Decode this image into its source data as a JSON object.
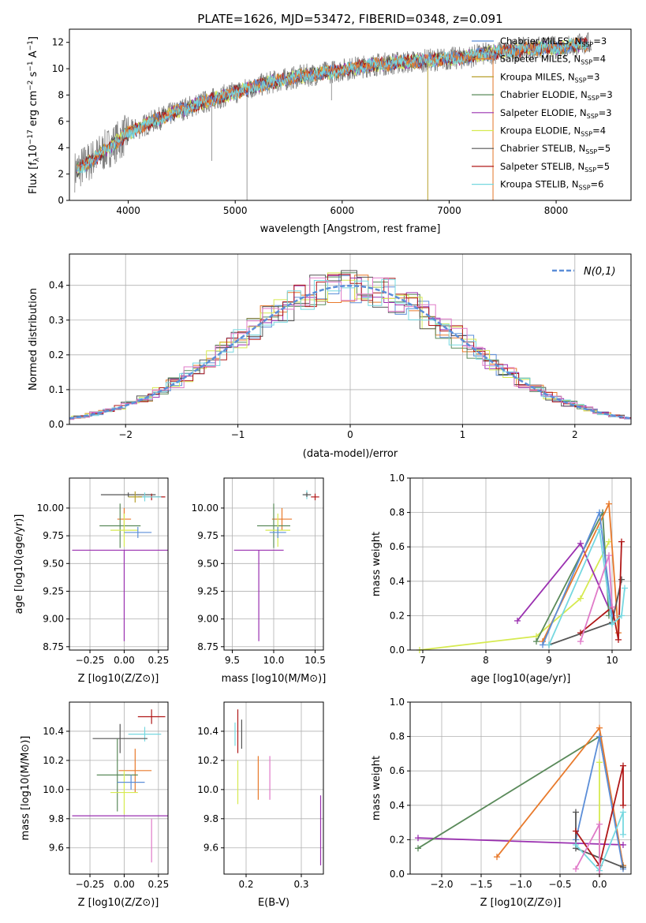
{
  "figure_title": "PLATE=1626, MJD=53472, FIBERID=0348, z=0.091",
  "colors": {
    "Chabrier MILES": "#5b8ed8",
    "Salpeter MILES": "#e87a2c",
    "Kroupa MILES": "#b8a02c",
    "Chabrier ELODIE": "#5a8a5a",
    "Salpeter ELODIE": "#9a30b0",
    "Kroupa ELODIE": "#d6ea50",
    "Chabrier STELIB": "#555555",
    "Salpeter STELIB": "#b01818",
    "Kroupa STELIB": "#76d8e0",
    "Kroupa STELIB residual": "#5fc8d8",
    "Salpeter ELODIE residual": "#e07ac8",
    "data": "#808080",
    "normal": "#5b8ed8"
  },
  "chart_data": [
    {
      "type": "line",
      "id": "spectrum",
      "title": "PLATE=1626, MJD=53472, FIBERID=0348, z=0.091",
      "xlabel": "wavelength [Angstrom, rest frame]",
      "ylabel": "Flux [f_λ 10^-17 erg cm^-2 s^-1 A^-1]",
      "xlim": [
        3450,
        8700
      ],
      "ylim": [
        0,
        13
      ],
      "xticks": [
        4000,
        5000,
        6000,
        7000,
        8000
      ],
      "yticks": [
        0,
        2,
        4,
        6,
        8,
        10,
        12
      ],
      "grid": false,
      "legend_position": "right",
      "legend": [
        {
          "label": "Chabrier MILES",
          "nssp": "3"
        },
        {
          "label": "Salpeter MILES",
          "nssp": "4"
        },
        {
          "label": "Kroupa MILES",
          "nssp": "3"
        },
        {
          "label": "Chabrier ELODIE",
          "nssp": "3"
        },
        {
          "label": "Salpeter ELODIE",
          "nssp": "3"
        },
        {
          "label": "Kroupa ELODIE",
          "nssp": "4"
        },
        {
          "label": "Chabrier STELIB",
          "nssp": "5"
        },
        {
          "label": "Salpeter STELIB",
          "nssp": "5"
        },
        {
          "label": "Kroupa STELIB",
          "nssp": "6"
        }
      ],
      "continuum": {
        "x": [
          3500,
          3700,
          4000,
          4200,
          4500,
          4800,
          5000,
          5300,
          5600,
          6000,
          6300,
          6600,
          6900,
          7100,
          7400,
          7700,
          8000,
          8300
        ],
        "y": [
          2.2,
          3.3,
          5.1,
          5.9,
          6.9,
          7.7,
          8.2,
          8.9,
          9.4,
          9.9,
          10.3,
          10.5,
          10.7,
          10.8,
          11.2,
          11.5,
          11.6,
          11.9
        ]
      }
    },
    {
      "type": "line",
      "id": "residuals",
      "xlabel": "(data-model)/error",
      "ylabel": "Normed distribution",
      "xlim": [
        -2.5,
        2.5
      ],
      "ylim": [
        0,
        0.49
      ],
      "xticks": [
        -2,
        -1,
        0,
        1,
        2
      ],
      "yticks": [
        0.0,
        0.1,
        0.2,
        0.3,
        0.4
      ],
      "grid": true,
      "legend": [
        {
          "label": "N(0,1)"
        }
      ],
      "legend_position": "top-right"
    },
    {
      "type": "scatter",
      "id": "age-vs-Z",
      "xlabel": "Z [log10(Z/Z⊙)]",
      "ylabel": "age [log10(age/yr)]",
      "xlim": [
        -0.4,
        0.32
      ],
      "ylim": [
        8.72,
        10.27
      ],
      "xticks": [
        -0.25,
        0.0,
        0.25
      ],
      "yticks": [
        8.75,
        9.0,
        9.25,
        9.5,
        9.75,
        10.0
      ],
      "grid": true,
      "points": [
        {
          "model": "Salpeter ELODIE",
          "x": 0.0,
          "y": 9.62,
          "xerr": 0.38,
          "yerr_low": 0.82,
          "yerr_high": 0.0
        },
        {
          "model": "Chabrier STELIB",
          "x": 0.03,
          "y": 10.12,
          "xerr": 0.2,
          "yerr": 0.02
        },
        {
          "model": "Salpeter STELIB",
          "x": 0.2,
          "y": 10.1,
          "xerr": 0.1,
          "yerr": 0.03
        },
        {
          "model": "Kroupa STELIB",
          "x": 0.15,
          "y": 10.1,
          "xerr": 0.12,
          "yerr": 0.04
        },
        {
          "model": "Salpeter MILES",
          "x": 0.0,
          "y": 9.9,
          "xerr": 0.05,
          "yerr": 0.1
        },
        {
          "model": "Chabrier ELODIE",
          "x": -0.03,
          "y": 9.84,
          "xerr": 0.15,
          "yerr": 0.2
        },
        {
          "model": "Kroupa ELODIE",
          "x": 0.0,
          "y": 9.8,
          "xerr": 0.1,
          "yerr": 0.15
        },
        {
          "model": "Chabrier MILES",
          "x": 0.1,
          "y": 9.78,
          "xerr": 0.1,
          "yerr": 0.05
        },
        {
          "model": "Kroupa MILES",
          "x": 0.08,
          "y": 10.1,
          "xerr": 0.05,
          "yerr": 0.05
        }
      ]
    },
    {
      "type": "scatter",
      "id": "age-vs-mass",
      "xlabel": "mass [log10(M/M⊙)]",
      "xlim": [
        9.4,
        10.6
      ],
      "ylim": [
        8.72,
        10.27
      ],
      "xticks": [
        9.5,
        10.0,
        10.5
      ],
      "yticks": [
        8.75,
        9.0,
        9.25,
        9.5,
        9.75,
        10.0
      ],
      "grid": true,
      "points": [
        {
          "model": "Salpeter ELODIE",
          "x": 9.82,
          "y": 9.62,
          "xerr": 0.3,
          "yerr_low": 0.82,
          "yerr_high": 0.0
        },
        {
          "model": "Salpeter STELIB",
          "x": 10.5,
          "y": 10.1,
          "xerr": 0.05,
          "yerr": 0.03
        },
        {
          "model": "Kroupa STELIB",
          "x": 10.4,
          "y": 10.12,
          "xerr": 0.05,
          "yerr": 0.04
        },
        {
          "model": "Chabrier STELIB",
          "x": 10.4,
          "y": 10.12,
          "xerr": 0.05,
          "yerr": 0.02
        },
        {
          "model": "Salpeter MILES",
          "x": 10.1,
          "y": 9.9,
          "xerr": 0.12,
          "yerr": 0.1
        },
        {
          "model": "Chabrier ELODIE",
          "x": 10.0,
          "y": 9.84,
          "xerr": 0.2,
          "yerr": 0.2
        },
        {
          "model": "Kroupa ELODIE",
          "x": 10.05,
          "y": 9.8,
          "xerr": 0.15,
          "yerr": 0.15
        },
        {
          "model": "Chabrier MILES",
          "x": 10.05,
          "y": 9.78,
          "xerr": 0.1,
          "yerr": 0.05
        }
      ]
    },
    {
      "type": "line",
      "id": "mass-weight-vs-age",
      "xlabel": "age [log10(age/yr)]",
      "ylabel": "mass weight",
      "xlim": [
        6.8,
        10.3
      ],
      "ylim": [
        0,
        1.0
      ],
      "xticks": [
        7,
        8,
        9,
        10
      ],
      "yticks": [
        0.0,
        0.2,
        0.4,
        0.6,
        0.8,
        1.0
      ],
      "grid": true,
      "series": [
        {
          "model": "Kroupa ELODIE",
          "x": [
            6.95,
            8.8,
            9.5,
            9.95
          ],
          "y": [
            0.0,
            0.08,
            0.3,
            0.63
          ]
        },
        {
          "model": "Salpeter ELODIE",
          "x": [
            8.5,
            9.5,
            10.0
          ],
          "y": [
            0.17,
            0.62,
            0.2
          ]
        },
        {
          "model": "Chabrier ELODIE",
          "x": [
            8.8,
            9.85,
            9.95
          ],
          "y": [
            0.05,
            0.8,
            0.2
          ]
        },
        {
          "model": "Salpeter MILES",
          "x": [
            8.9,
            9.95,
            10.1
          ],
          "y": [
            0.05,
            0.85,
            0.1
          ]
        },
        {
          "model": "Chabrier MILES",
          "x": [
            8.9,
            9.8,
            10.0
          ],
          "y": [
            0.03,
            0.8,
            0.2
          ]
        },
        {
          "model": "Chabrier STELIB",
          "x": [
            9.0,
            10.0,
            10.15
          ],
          "y": [
            0.03,
            0.16,
            0.41
          ]
        },
        {
          "model": "Salpeter STELIB",
          "x": [
            9.5,
            10.0,
            10.1,
            10.15
          ],
          "y": [
            0.1,
            0.25,
            0.06,
            0.63
          ]
        },
        {
          "model": "Kroupa STELIB",
          "x": [
            9.0,
            9.8,
            10.0,
            10.15,
            10.2
          ],
          "y": [
            0.03,
            0.7,
            0.15,
            0.2,
            0.36
          ]
        },
        {
          "model": "Salpeter ELODIE residual",
          "x": [
            9.5,
            9.95,
            10.0
          ],
          "y": [
            0.05,
            0.55,
            0.25
          ]
        }
      ]
    },
    {
      "type": "scatter",
      "id": "mass-vs-Z",
      "xlabel": "Z [log10(Z/Z⊙)]",
      "ylabel": "mass [log10(M/M⊙)]",
      "xlim": [
        -0.4,
        0.32
      ],
      "ylim": [
        9.42,
        10.6
      ],
      "xticks": [
        -0.25,
        0.0,
        0.25
      ],
      "yticks": [
        9.6,
        9.8,
        10.0,
        10.2,
        10.4
      ],
      "grid": true,
      "points": [
        {
          "model": "Salpeter ELODIE",
          "x": 0.0,
          "y": 9.82,
          "xerr": 0.38,
          "yerr": 0.0
        },
        {
          "model": "Salpeter STELIB",
          "x": 0.2,
          "y": 10.5,
          "xerr": 0.1,
          "yerr": 0.05
        },
        {
          "model": "Kroupa STELIB",
          "x": 0.15,
          "y": 10.38,
          "xerr": 0.12,
          "yerr": 0.05
        },
        {
          "model": "Chabrier STELIB",
          "x": -0.03,
          "y": 10.35,
          "xerr": 0.2,
          "yerr": 0.1
        },
        {
          "model": "Salpeter MILES",
          "x": 0.08,
          "y": 10.13,
          "xerr": 0.12,
          "yerr": 0.15
        },
        {
          "model": "Chabrier ELODIE",
          "x": -0.05,
          "y": 10.1,
          "xerr": 0.15,
          "yerr": 0.25
        },
        {
          "model": "Kroupa ELODIE",
          "x": 0.0,
          "y": 9.98,
          "xerr": 0.1,
          "yerr": 0.15
        },
        {
          "model": "Chabrier MILES",
          "x": 0.05,
          "y": 10.05,
          "xerr": 0.1,
          "yerr": 0.05
        },
        {
          "model": "Salpeter ELODIE residual",
          "x": 0.2,
          "y": 9.65,
          "xerr": 0.0,
          "yerr": 0.15
        }
      ]
    },
    {
      "type": "scatter",
      "id": "mass-vs-EBV",
      "xlabel": "E(B-V)",
      "xlim": [
        0.16,
        0.34
      ],
      "ylim": [
        9.42,
        10.6
      ],
      "xticks": [
        0.2,
        0.3
      ],
      "yticks": [
        9.6,
        9.8,
        10.0,
        10.2,
        10.4
      ],
      "grid": true,
      "points": [
        {
          "model": "Salpeter ELODIE",
          "x": 0.335,
          "y": 9.72,
          "yerr": 0.24
        },
        {
          "model": "Salpeter STELIB",
          "x": 0.185,
          "y": 10.4,
          "yerr": 0.15
        },
        {
          "model": "Chabrier STELIB",
          "x": 0.192,
          "y": 10.38,
          "yerr": 0.1
        },
        {
          "model": "Kroupa STELIB",
          "x": 0.18,
          "y": 10.38,
          "yerr": 0.08
        },
        {
          "model": "Kroupa ELODIE",
          "x": 0.185,
          "y": 10.05,
          "yerr": 0.15
        },
        {
          "model": "Salpeter MILES",
          "x": 0.222,
          "y": 10.08,
          "yerr": 0.15
        },
        {
          "model": "Salpeter ELODIE residual",
          "x": 0.243,
          "y": 10.08,
          "yerr": 0.15
        }
      ]
    },
    {
      "type": "line",
      "id": "mass-weight-vs-Z",
      "xlabel": "Z [log10(Z/Z⊙)]",
      "ylabel": "mass weight",
      "xlim": [
        -2.4,
        0.4
      ],
      "ylim": [
        0,
        1.0
      ],
      "xticks": [
        -2.0,
        -1.5,
        -1.0,
        -0.5,
        0.0
      ],
      "yticks": [
        0.0,
        0.2,
        0.4,
        0.6,
        0.8,
        1.0
      ],
      "grid": true,
      "series": [
        {
          "model": "Salpeter ELODIE",
          "x": [
            -2.3,
            0.3
          ],
          "y": [
            0.21,
            0.17
          ]
        },
        {
          "model": "Chabrier ELODIE",
          "x": [
            -2.3,
            0.0,
            0.3
          ],
          "y": [
            0.15,
            0.8,
            0.05
          ]
        },
        {
          "model": "Salpeter MILES",
          "x": [
            -1.3,
            0.0,
            0.3
          ],
          "y": [
            0.1,
            0.85,
            0.05
          ]
        },
        {
          "model": "Chabrier MILES",
          "x": [
            -0.3,
            0.0,
            0.3
          ],
          "y": [
            0.2,
            0.8,
            0.03
          ]
        },
        {
          "model": "Chabrier STELIB",
          "x": [
            -0.3,
            -0.3,
            0.3
          ],
          "y": [
            0.36,
            0.15,
            0.04
          ]
        },
        {
          "model": "Salpeter STELIB",
          "x": [
            -0.3,
            0.0,
            0.3,
            0.3
          ],
          "y": [
            0.25,
            0.05,
            0.63,
            0.4
          ]
        },
        {
          "model": "Kroupa STELIB",
          "x": [
            -0.3,
            0.0,
            0.3,
            0.3
          ],
          "y": [
            0.17,
            0.02,
            0.36,
            0.23
          ]
        },
        {
          "model": "Kroupa ELODIE",
          "x": [
            0.0,
            0.0
          ],
          "y": [
            0.65,
            0.0
          ]
        },
        {
          "model": "Salpeter ELODIE residual",
          "x": [
            -0.3,
            0.0,
            0.0
          ],
          "y": [
            0.03,
            0.29,
            0.0
          ]
        }
      ]
    }
  ]
}
